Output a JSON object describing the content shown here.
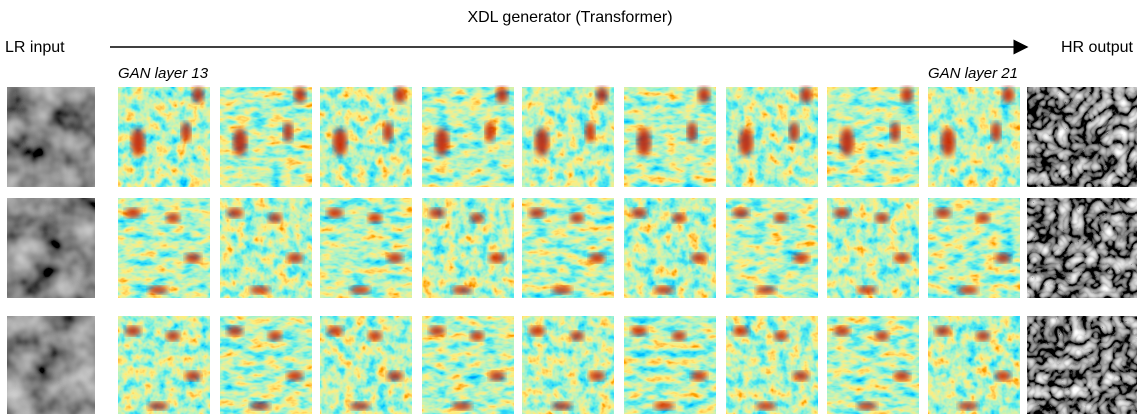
{
  "header": {
    "title": "XDL generator (Transformer)",
    "input_label": "LR input",
    "output_label": "HR output"
  },
  "layers": {
    "first": "GAN layer 13",
    "last": "GAN layer 21"
  }
}
